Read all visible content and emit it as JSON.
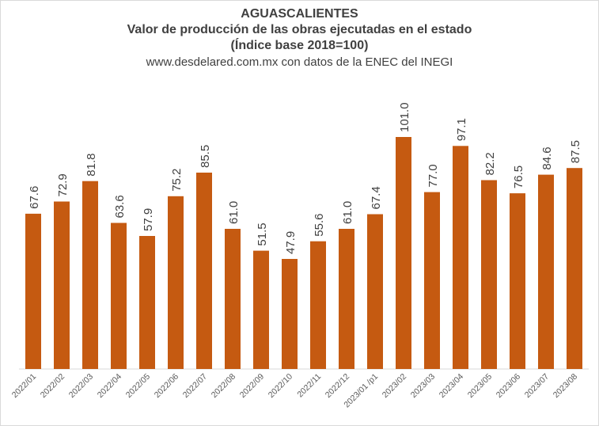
{
  "chart_data": {
    "type": "bar",
    "title": "AGUASCALIENTES",
    "subtitle": "Valor de producción de las obras ejecutadas en el estado",
    "subtitle2": "(Índice base 2018=100)",
    "source": "www.desdelared.com.mx con datos de la ENEC del INEGI",
    "categories": [
      "2022/01",
      "2022/02",
      "2022/03",
      "2022/04",
      "2022/05",
      "2022/06",
      "2022/07",
      "2022/08",
      "2022/09",
      "2022/10",
      "2022/11",
      "2022/12",
      "2023/01 /p1",
      "2023/02",
      "2023/03",
      "2023/04",
      "2023/05",
      "2023/06",
      "2023/07",
      "2023/08"
    ],
    "values": [
      67.6,
      72.9,
      81.8,
      63.6,
      57.9,
      75.2,
      85.5,
      61.0,
      51.5,
      47.9,
      55.6,
      61.0,
      67.4,
      101.0,
      77.0,
      97.1,
      82.2,
      76.5,
      84.6,
      87.5
    ],
    "value_labels": [
      "67.6",
      "72.9",
      "81.8",
      "63.6",
      "57.9",
      "75.2",
      "85.5",
      "61.0",
      "51.5",
      "47.9",
      "55.6",
      "61.0",
      "67.4",
      "101.0",
      "77.0",
      "97.1",
      "82.2",
      "76.5",
      "84.6",
      "87.5"
    ],
    "ylim": [
      0,
      101
    ],
    "grid": false,
    "legend": "none",
    "bar_color": "#c55a11"
  }
}
